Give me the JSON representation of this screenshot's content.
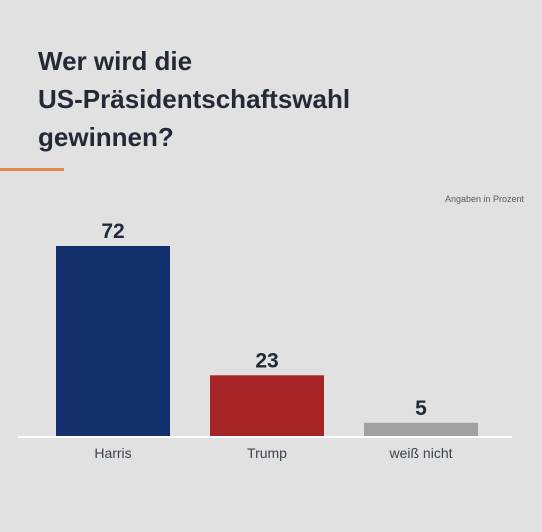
{
  "header": {
    "title_lines": [
      "Wer wird die",
      "US-Präsidentschaftswahl",
      "gewinnen?"
    ],
    "note": "Angaben in Prozent"
  },
  "colors": {
    "background": "#e1e1e1",
    "title": "#232a36",
    "accent": "#e4874f",
    "baseline": "#ffffff",
    "harris": "#14306c",
    "trump": "#a62326",
    "undecided": "#a0a0a0"
  },
  "chart_data": {
    "type": "bar",
    "title": "Wer wird die US-Präsidentschaftswahl gewinnen?",
    "note": "Angaben in Prozent",
    "categories": [
      "Harris",
      "Trump",
      "weiß nicht"
    ],
    "values": [
      72,
      23,
      5
    ],
    "colors": [
      "#14306c",
      "#a62326",
      "#a0a0a0"
    ],
    "ylim": [
      0,
      72
    ],
    "grid": false,
    "legend": "none"
  }
}
